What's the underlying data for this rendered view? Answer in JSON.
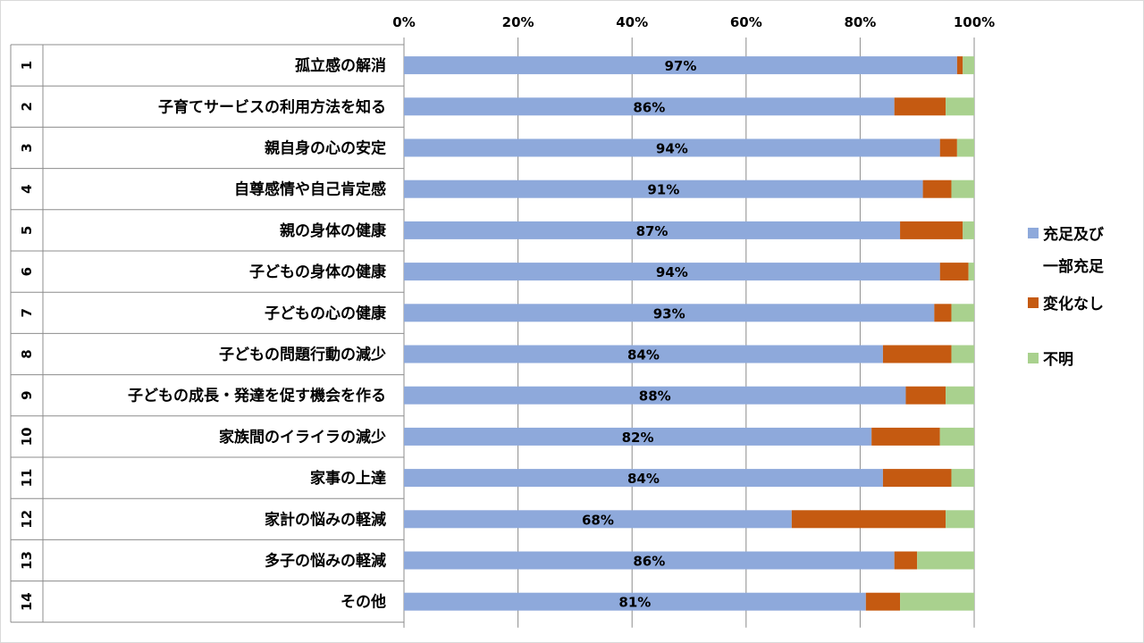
{
  "chart_data": {
    "type": "bar",
    "orientation": "horizontal",
    "stacked": "percent",
    "xlim": [
      0,
      100
    ],
    "x_ticks": [
      "0%",
      "20%",
      "40%",
      "60%",
      "80%",
      "100%"
    ],
    "grid": true,
    "legend_position": "right",
    "row_numbers": [
      "1",
      "2",
      "3",
      "4",
      "5",
      "6",
      "7",
      "8",
      "9",
      "10",
      "11",
      "12",
      "13",
      "14"
    ],
    "categories": [
      "孤立感の解消",
      "子育てサービスの利用方法を知る",
      "親自身の心の安定",
      "自尊感情や自己肯定感",
      "親の身体の健康",
      "子どもの身体の健康",
      "子どもの心の健康",
      "子どもの問題行動の減少",
      "子どもの成長・発達を促す機会を作る",
      "家族間のイライラの減少",
      "家事の上達",
      "家計の悩みの軽減",
      "多子の悩みの軽減",
      "その他"
    ],
    "series": [
      {
        "name": "充足及び一部充足",
        "legend_lines": [
          "充足及び",
          "一部充足"
        ],
        "color": "#8EA9DB",
        "values": [
          97,
          86,
          94,
          91,
          87,
          94,
          93,
          84,
          88,
          82,
          84,
          68,
          86,
          81
        ]
      },
      {
        "name": "変化なし",
        "legend_lines": [
          "変化なし"
        ],
        "color": "#C55A11",
        "values": [
          1,
          9,
          3,
          5,
          11,
          5,
          3,
          12,
          7,
          12,
          12,
          27,
          4,
          6
        ]
      },
      {
        "name": "不明",
        "legend_lines": [
          "不明"
        ],
        "color": "#A9D18E",
        "values": [
          2,
          5,
          3,
          4,
          2,
          1,
          4,
          4,
          5,
          6,
          4,
          5,
          10,
          13
        ]
      }
    ],
    "data_labels": [
      "97%",
      "86%",
      "94%",
      "91%",
      "87%",
      "94%",
      "93%",
      "84%",
      "88%",
      "82%",
      "84%",
      "68%",
      "86%",
      "81%"
    ]
  }
}
